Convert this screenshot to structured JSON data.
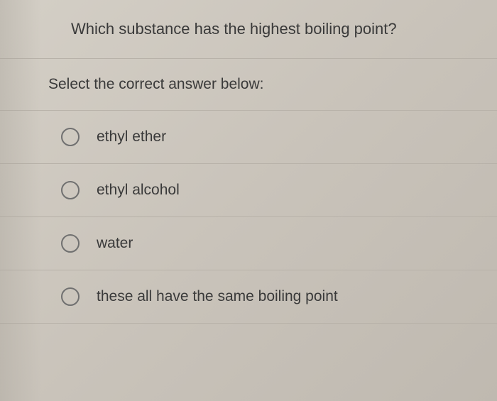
{
  "question": {
    "text": "Which substance has the highest boiling point?"
  },
  "instruction": {
    "text": "Select the correct answer below:"
  },
  "options": [
    {
      "label": "ethyl ether"
    },
    {
      "label": "ethyl alcohol"
    },
    {
      "label": "water"
    },
    {
      "label": "these all have the same boiling point"
    }
  ],
  "colors": {
    "background": "#c9c3ba",
    "text": "#3a3a3a",
    "border": "#b8b2a9",
    "radio_border": "#707070"
  }
}
